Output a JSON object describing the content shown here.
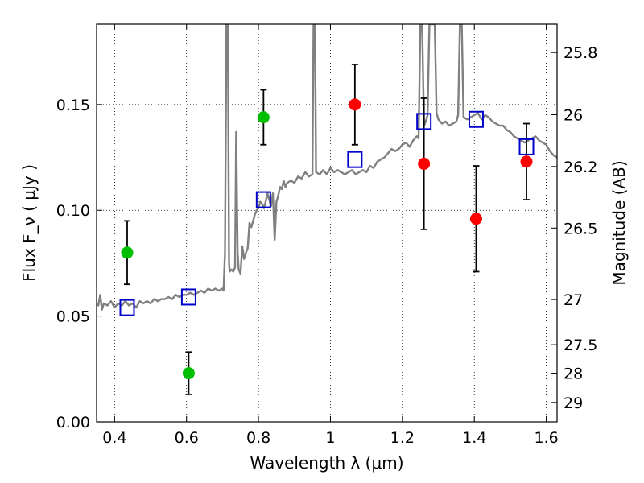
{
  "chart_data": {
    "type": "scatter",
    "xlabel": "Wavelength  λ (μm)",
    "ylabel": "Flux  F_ν  ( μJy )",
    "y2label": "Magnitude (AB)",
    "xlim": [
      0.35,
      1.63
    ],
    "ylim": [
      0.0,
      0.188
    ],
    "grid": true,
    "x_ticks": [
      0.4,
      0.6,
      0.8,
      1.0,
      1.2,
      1.4,
      1.6
    ],
    "x_tick_labels": [
      "0.4",
      "0.6",
      "0.8",
      "1",
      "1.2",
      "1.4",
      "1.6"
    ],
    "y_ticks": [
      0.0,
      0.05,
      0.1,
      0.15
    ],
    "y_tick_labels": [
      "0.00",
      "0.05",
      "0.10",
      "0.15"
    ],
    "y2_ticks": [
      {
        "label": "25.8",
        "flux": 0.1746
      },
      {
        "label": "26",
        "flux": 0.1452
      },
      {
        "label": "26.2",
        "flux": 0.1207
      },
      {
        "label": "26.5",
        "flux": 0.0916
      },
      {
        "label": "27",
        "flux": 0.0578
      },
      {
        "label": "27.5",
        "flux": 0.0365
      },
      {
        "label": "28",
        "flux": 0.023
      },
      {
        "label": "29",
        "flux": 0.0092
      }
    ],
    "series": [
      {
        "type": "line",
        "color": "#808080",
        "points": [
          [
            0.35,
            0.056
          ],
          [
            0.355,
            0.055
          ],
          [
            0.36,
            0.06
          ],
          [
            0.365,
            0.053
          ],
          [
            0.37,
            0.056
          ],
          [
            0.38,
            0.055
          ],
          [
            0.39,
            0.057
          ],
          [
            0.4,
            0.054
          ],
          [
            0.41,
            0.056
          ],
          [
            0.42,
            0.055
          ],
          [
            0.43,
            0.057
          ],
          [
            0.44,
            0.055
          ],
          [
            0.45,
            0.056
          ],
          [
            0.46,
            0.054
          ],
          [
            0.47,
            0.057
          ],
          [
            0.48,
            0.056
          ],
          [
            0.49,
            0.057
          ],
          [
            0.5,
            0.056
          ],
          [
            0.51,
            0.058
          ],
          [
            0.52,
            0.057
          ],
          [
            0.53,
            0.058
          ],
          [
            0.54,
            0.058
          ],
          [
            0.55,
            0.059
          ],
          [
            0.56,
            0.058
          ],
          [
            0.57,
            0.06
          ],
          [
            0.58,
            0.059
          ],
          [
            0.59,
            0.06
          ],
          [
            0.6,
            0.06
          ],
          [
            0.61,
            0.061
          ],
          [
            0.62,
            0.06
          ],
          [
            0.63,
            0.061
          ],
          [
            0.64,
            0.062
          ],
          [
            0.65,
            0.061
          ],
          [
            0.66,
            0.063
          ],
          [
            0.67,
            0.062
          ],
          [
            0.68,
            0.063
          ],
          [
            0.69,
            0.062
          ],
          [
            0.7,
            0.063
          ],
          [
            0.703,
            0.062
          ],
          [
            0.707,
            0.08
          ],
          [
            0.711,
            0.188
          ],
          [
            0.715,
            0.188
          ],
          [
            0.718,
            0.075
          ],
          [
            0.72,
            0.071
          ],
          [
            0.725,
            0.072
          ],
          [
            0.73,
            0.071
          ],
          [
            0.735,
            0.073
          ],
          [
            0.738,
            0.137
          ],
          [
            0.742,
            0.08
          ],
          [
            0.745,
            0.072
          ],
          [
            0.75,
            0.07
          ],
          [
            0.755,
            0.083
          ],
          [
            0.76,
            0.077
          ],
          [
            0.765,
            0.08
          ],
          [
            0.77,
            0.082
          ],
          [
            0.775,
            0.094
          ],
          [
            0.78,
            0.092
          ],
          [
            0.785,
            0.095
          ],
          [
            0.79,
            0.098
          ],
          [
            0.795,
            0.1
          ],
          [
            0.8,
            0.101
          ],
          [
            0.805,
            0.104
          ],
          [
            0.81,
            0.103
          ],
          [
            0.815,
            0.101
          ],
          [
            0.82,
            0.104
          ],
          [
            0.825,
            0.108
          ],
          [
            0.83,
            0.105
          ],
          [
            0.835,
            0.102
          ],
          [
            0.84,
            0.108
          ],
          [
            0.845,
            0.086
          ],
          [
            0.85,
            0.104
          ],
          [
            0.855,
            0.107
          ],
          [
            0.86,
            0.111
          ],
          [
            0.865,
            0.11
          ],
          [
            0.87,
            0.114
          ],
          [
            0.875,
            0.111
          ],
          [
            0.88,
            0.113
          ],
          [
            0.89,
            0.114
          ],
          [
            0.9,
            0.113
          ],
          [
            0.91,
            0.116
          ],
          [
            0.92,
            0.115
          ],
          [
            0.93,
            0.118
          ],
          [
            0.94,
            0.116
          ],
          [
            0.95,
            0.117
          ],
          [
            0.953,
            0.188
          ],
          [
            0.957,
            0.188
          ],
          [
            0.96,
            0.118
          ],
          [
            0.97,
            0.117
          ],
          [
            0.98,
            0.119
          ],
          [
            0.99,
            0.117
          ],
          [
            1.0,
            0.12
          ],
          [
            1.01,
            0.118
          ],
          [
            1.02,
            0.119
          ],
          [
            1.03,
            0.118
          ],
          [
            1.04,
            0.117
          ],
          [
            1.05,
            0.118
          ],
          [
            1.06,
            0.119
          ],
          [
            1.07,
            0.117
          ],
          [
            1.08,
            0.118
          ],
          [
            1.09,
            0.119
          ],
          [
            1.1,
            0.118
          ],
          [
            1.11,
            0.121
          ],
          [
            1.12,
            0.12
          ],
          [
            1.13,
            0.123
          ],
          [
            1.14,
            0.124
          ],
          [
            1.15,
            0.125
          ],
          [
            1.16,
            0.127
          ],
          [
            1.17,
            0.129
          ],
          [
            1.18,
            0.128
          ],
          [
            1.19,
            0.129
          ],
          [
            1.2,
            0.131
          ],
          [
            1.21,
            0.132
          ],
          [
            1.22,
            0.13
          ],
          [
            1.23,
            0.133
          ],
          [
            1.24,
            0.135
          ],
          [
            1.245,
            0.134
          ],
          [
            1.25,
            0.188
          ],
          [
            1.255,
            0.188
          ],
          [
            1.26,
            0.14
          ],
          [
            1.265,
            0.142
          ],
          [
            1.27,
            0.145
          ],
          [
            1.275,
            0.188
          ],
          [
            1.278,
            0.188
          ],
          [
            1.285,
            0.188
          ],
          [
            1.29,
            0.188
          ],
          [
            1.295,
            0.146
          ],
          [
            1.3,
            0.143
          ],
          [
            1.31,
            0.141
          ],
          [
            1.32,
            0.142
          ],
          [
            1.33,
            0.14
          ],
          [
            1.34,
            0.141
          ],
          [
            1.35,
            0.142
          ],
          [
            1.355,
            0.145
          ],
          [
            1.36,
            0.188
          ],
          [
            1.365,
            0.188
          ],
          [
            1.37,
            0.144
          ],
          [
            1.38,
            0.143
          ],
          [
            1.39,
            0.144
          ],
          [
            1.4,
            0.145
          ],
          [
            1.41,
            0.146
          ],
          [
            1.42,
            0.143
          ],
          [
            1.43,
            0.145
          ],
          [
            1.44,
            0.144
          ],
          [
            1.45,
            0.142
          ],
          [
            1.46,
            0.141
          ],
          [
            1.47,
            0.14
          ],
          [
            1.48,
            0.14
          ],
          [
            1.49,
            0.138
          ],
          [
            1.5,
            0.137
          ],
          [
            1.51,
            0.135
          ],
          [
            1.52,
            0.134
          ],
          [
            1.53,
            0.133
          ],
          [
            1.54,
            0.132
          ],
          [
            1.55,
            0.133
          ],
          [
            1.56,
            0.134
          ],
          [
            1.57,
            0.135
          ],
          [
            1.58,
            0.133
          ],
          [
            1.59,
            0.132
          ],
          [
            1.6,
            0.131
          ],
          [
            1.61,
            0.128
          ],
          [
            1.62,
            0.126
          ],
          [
            1.63,
            0.125
          ]
        ]
      },
      {
        "type": "scatter",
        "marker": "circle",
        "color": "#00bf00",
        "points": [
          {
            "x": 0.435,
            "y": 0.08,
            "err_lo": 0.015,
            "err_hi": 0.015
          },
          {
            "x": 0.606,
            "y": 0.023,
            "err_lo": 0.01,
            "err_hi": 0.01
          },
          {
            "x": 0.814,
            "y": 0.144,
            "err_lo": 0.013,
            "err_hi": 0.013
          }
        ]
      },
      {
        "type": "scatter",
        "marker": "circle",
        "color": "#ff0000",
        "points": [
          {
            "x": 1.068,
            "y": 0.15,
            "err_lo": 0.019,
            "err_hi": 0.019
          },
          {
            "x": 1.26,
            "y": 0.122,
            "err_lo": 0.031,
            "err_hi": 0.031
          },
          {
            "x": 1.405,
            "y": 0.096,
            "err_lo": 0.025,
            "err_hi": 0.025
          },
          {
            "x": 1.545,
            "y": 0.123,
            "err_lo": 0.018,
            "err_hi": 0.018
          }
        ]
      },
      {
        "type": "scatter",
        "marker": "square-open",
        "color": "#0000cc",
        "points": [
          {
            "x": 0.435,
            "y": 0.054
          },
          {
            "x": 0.606,
            "y": 0.059
          },
          {
            "x": 0.814,
            "y": 0.105
          },
          {
            "x": 1.068,
            "y": 0.124
          },
          {
            "x": 1.26,
            "y": 0.142
          },
          {
            "x": 1.405,
            "y": 0.143
          },
          {
            "x": 1.545,
            "y": 0.13
          }
        ]
      }
    ]
  }
}
